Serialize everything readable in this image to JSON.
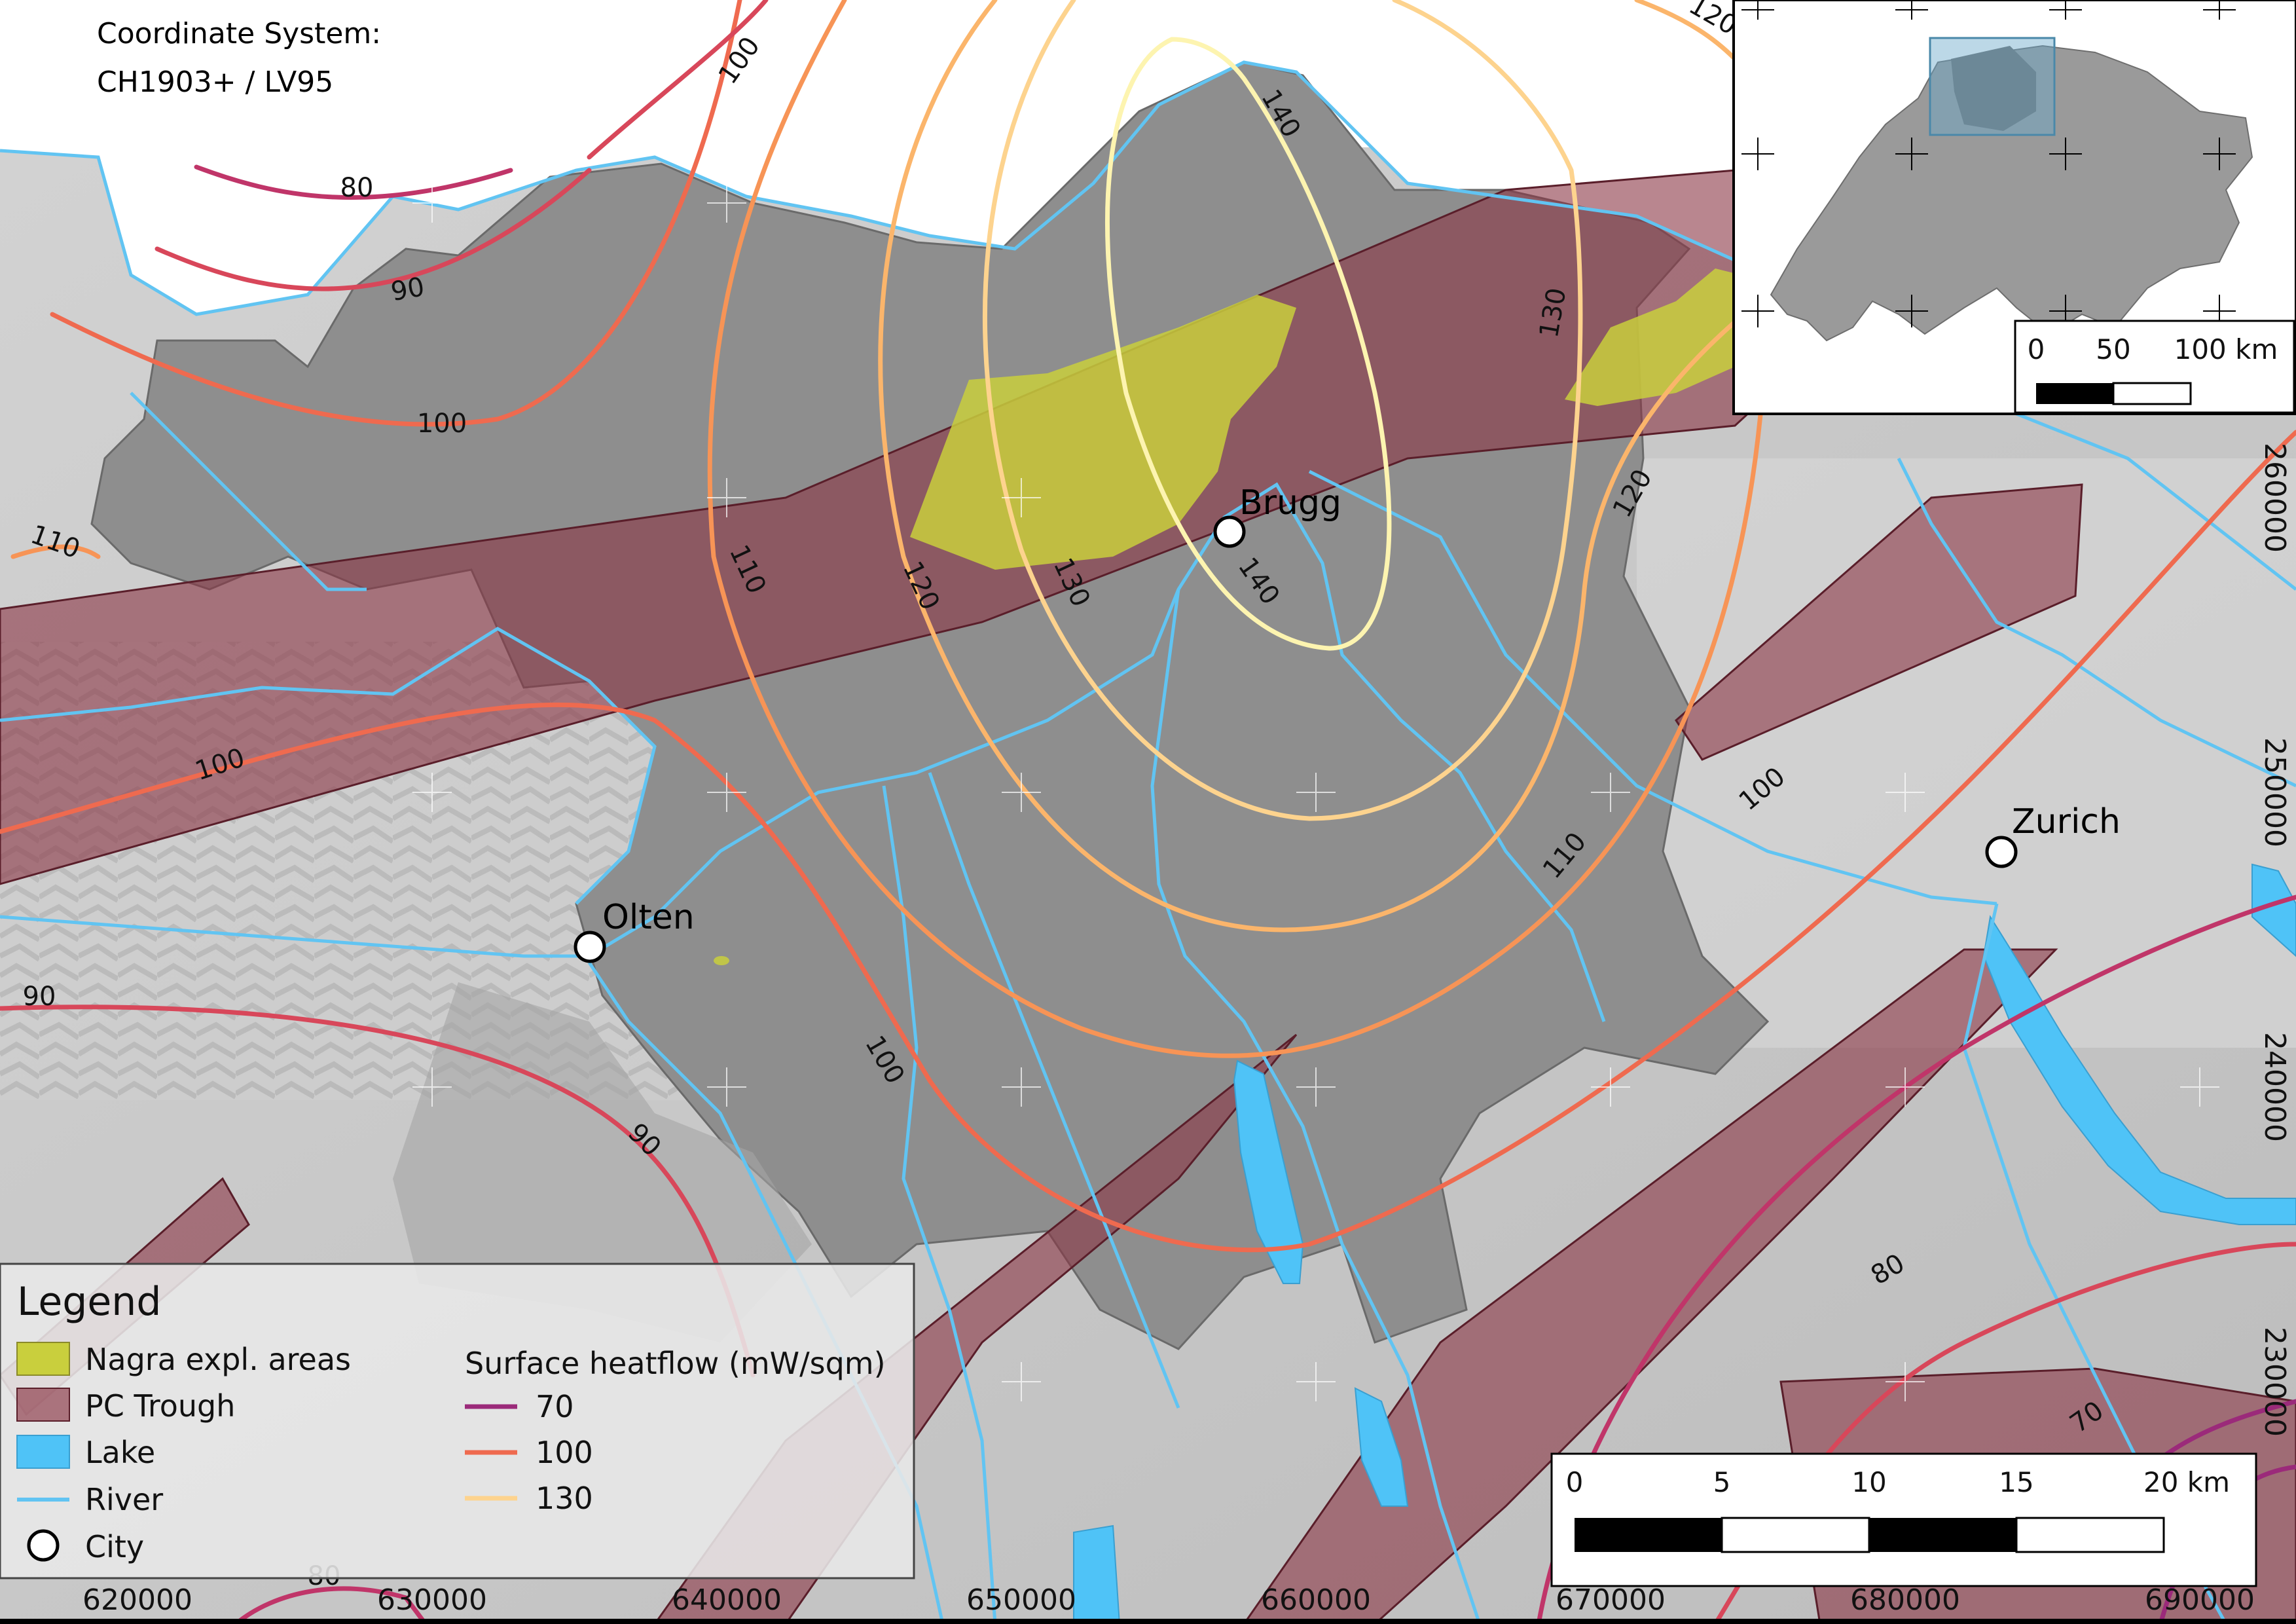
{
  "crs": {
    "line1": "Coordinate  System:",
    "line2": "CH1903+ / LV95"
  },
  "cities": [
    {
      "name": "Brugg"
    },
    {
      "name": "Olten"
    },
    {
      "name": "Zurich"
    }
  ],
  "contour_labels": {
    "c80_nw": "80",
    "c90_nw": "90",
    "c100_top": "100",
    "c100_nw": "100",
    "c110_w": "110",
    "c100_w": "100",
    "c90_w": "90",
    "c110_mid": "110",
    "c120_mid": "120",
    "c130_mid": "130",
    "c140_top": "140",
    "c140_brugg": "140",
    "c130_e": "130",
    "c120_e": "120",
    "c120_top": "120",
    "c100_e": "100",
    "c110_e": "110",
    "c100_s": "100",
    "c90_s": "90",
    "c80_e": "80",
    "c70_e": "70",
    "c80_bottom": "80"
  },
  "axis": {
    "x_ticks": [
      "620000",
      "630000",
      "640000",
      "650000",
      "660000",
      "670000",
      "680000",
      "690000"
    ],
    "y_ticks": [
      "260000",
      "250000",
      "240000",
      "230000"
    ]
  },
  "legend": {
    "title": "Legend",
    "nagra": "Nagra expl. areas",
    "pc_trough": "PC Trough",
    "lake": "Lake",
    "river": "River",
    "city": "City",
    "heatflow_title": "Surface heatflow (mW/sqm)",
    "hf_70": "70",
    "hf_100": "100",
    "hf_130": "130"
  },
  "scalebar": {
    "t0": "0",
    "t5": "5",
    "t10": "10",
    "t15": "15",
    "t20": "20 km"
  },
  "inset": {
    "t0": "0",
    "t50": "50",
    "t100": "100 km"
  },
  "colors": {
    "nagra": "#c9cf3d",
    "pc_trough": "#8a3545",
    "lake": "#4fc3f7",
    "river": "#61c4f2",
    "hf_70": "#9b2a7a",
    "hf_80": "#c03569",
    "hf_90": "#d8475a",
    "hf_100": "#ef6a4f",
    "hf_110": "#f79456",
    "hf_120": "#fbb56b",
    "hf_130": "#fdd38e",
    "hf_140": "#fdf4b0"
  }
}
